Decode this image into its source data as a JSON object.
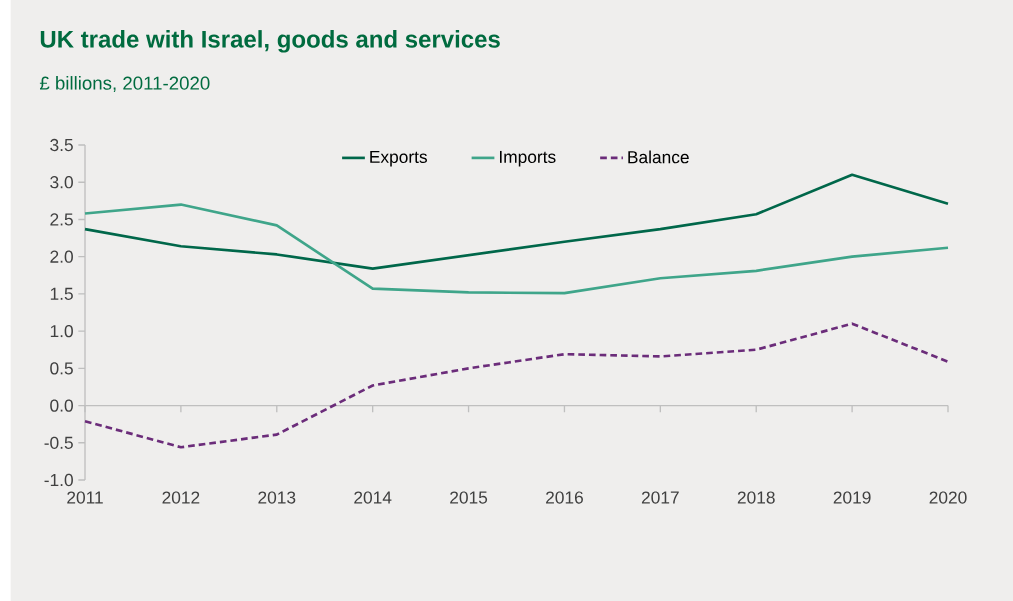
{
  "chart_data": {
    "type": "line",
    "title": "UK trade with Israel, goods and services",
    "subtitle": "£ billions, 2011-2020",
    "categories": [
      "2011",
      "2012",
      "2013",
      "2014",
      "2015",
      "2016",
      "2017",
      "2018",
      "2019",
      "2020"
    ],
    "series": [
      {
        "name": "Exports",
        "color": "#00674a",
        "values": [
          2.37,
          2.14,
          2.03,
          1.84,
          2.02,
          2.2,
          2.37,
          2.57,
          3.1,
          2.71
        ]
      },
      {
        "name": "Imports",
        "color": "#3fa58a",
        "values": [
          2.58,
          2.7,
          2.42,
          1.57,
          1.52,
          1.51,
          1.71,
          1.81,
          2.0,
          2.12
        ]
      },
      {
        "name": "Balance",
        "color": "#6b2c7a",
        "line_style": "dashed",
        "values": [
          -0.21,
          -0.56,
          -0.39,
          0.27,
          0.5,
          0.69,
          0.66,
          0.75,
          1.1,
          0.59
        ]
      }
    ],
    "ylim": [
      -1.0,
      3.5
    ],
    "yticks": [
      {
        "value": -1.0,
        "label": "-1.0"
      },
      {
        "value": -0.5,
        "label": "-0.5"
      },
      {
        "value": 0,
        "label": "0.0"
      },
      {
        "value": 0.5,
        "label": "0.5"
      },
      {
        "value": 1.0,
        "label": "1.0"
      },
      {
        "value": 1.5,
        "label": "1.5"
      },
      {
        "value": 2.0,
        "label": "2.0"
      },
      {
        "value": 2.5,
        "label": "2.5"
      },
      {
        "value": 3.0,
        "label": "3.0"
      },
      {
        "value": 3.5,
        "label": "3.5"
      }
    ],
    "legend": "top",
    "marker": "none",
    "line_style": "solid"
  }
}
